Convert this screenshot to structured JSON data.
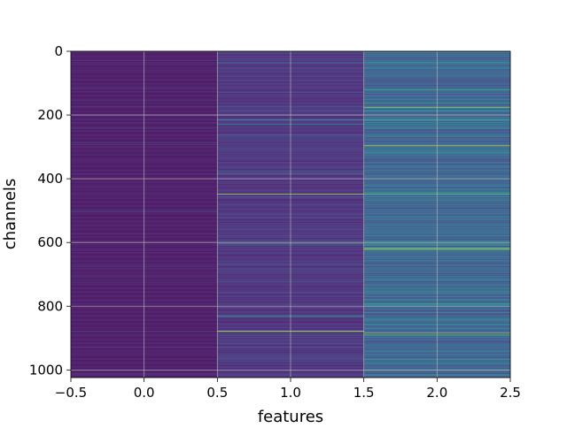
{
  "chart_data": {
    "type": "heatmap",
    "colormap": "viridis",
    "xlabel": "features",
    "ylabel": "channels",
    "xlim": [
      -0.5,
      2.5
    ],
    "ylim": [
      1024,
      0
    ],
    "y_inverted": true,
    "x_ticks": [
      -0.5,
      0.0,
      0.5,
      1.0,
      1.5,
      2.0,
      2.5
    ],
    "x_tick_labels": [
      "−0.5",
      "0.0",
      "0.5",
      "1.0",
      "1.5",
      "2.0",
      "2.5"
    ],
    "y_ticks": [
      0,
      200,
      400,
      600,
      800,
      1000
    ],
    "y_tick_labels": [
      "0",
      "200",
      "400",
      "600",
      "800",
      "1000"
    ],
    "grid": true,
    "features": [
      0,
      1,
      2
    ],
    "channels": 1024,
    "value_range": [
      0,
      1
    ],
    "column_base_values": [
      0.05,
      0.12,
      0.28
    ],
    "bright_rows": [
      {
        "feature": 1,
        "channel": 448,
        "value": 0.85
      },
      {
        "feature": 1,
        "channel": 878,
        "value": 0.9
      },
      {
        "feature": 1,
        "channel": 604,
        "value": 0.55
      },
      {
        "feature": 1,
        "channel": 832,
        "value": 0.55
      },
      {
        "feature": 1,
        "channel": 215,
        "value": 0.5
      },
      {
        "feature": 1,
        "channel": 228,
        "value": 0.45
      },
      {
        "feature": 2,
        "channel": 175,
        "value": 0.85
      },
      {
        "feature": 2,
        "channel": 296,
        "value": 0.9
      },
      {
        "feature": 2,
        "channel": 448,
        "value": 0.7
      },
      {
        "feature": 2,
        "channel": 618,
        "value": 0.9
      },
      {
        "feature": 2,
        "channel": 622,
        "value": 0.75
      },
      {
        "feature": 2,
        "channel": 884,
        "value": 0.85
      },
      {
        "feature": 2,
        "channel": 890,
        "value": 0.7
      },
      {
        "feature": 2,
        "channel": 120,
        "value": 0.6
      },
      {
        "feature": 2,
        "channel": 215,
        "value": 0.55
      },
      {
        "feature": 2,
        "channel": 1000,
        "value": 0.6
      }
    ]
  }
}
